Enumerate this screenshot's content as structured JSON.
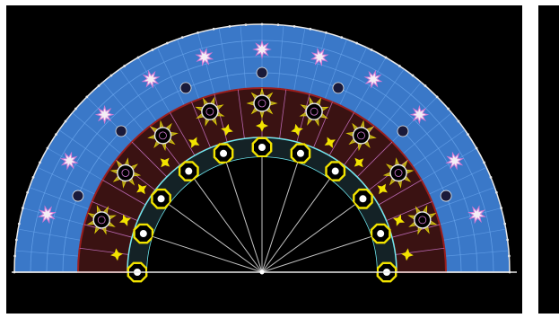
{
  "figure": {
    "description_visible_text": "",
    "colors": {
      "background": "#000000",
      "outer_band": "#3a78c8",
      "outer_band_light": "#6aa6ee",
      "frame_line": "#e8e8e8",
      "ring_red": "#9a1e1e",
      "accent_yellow": "#f2e300",
      "accent_olive": "#b4a82c",
      "accent_pink": "#d47ad4",
      "accent_cyan": "#6ee8f0",
      "star_white": "#f4eef6"
    }
  }
}
